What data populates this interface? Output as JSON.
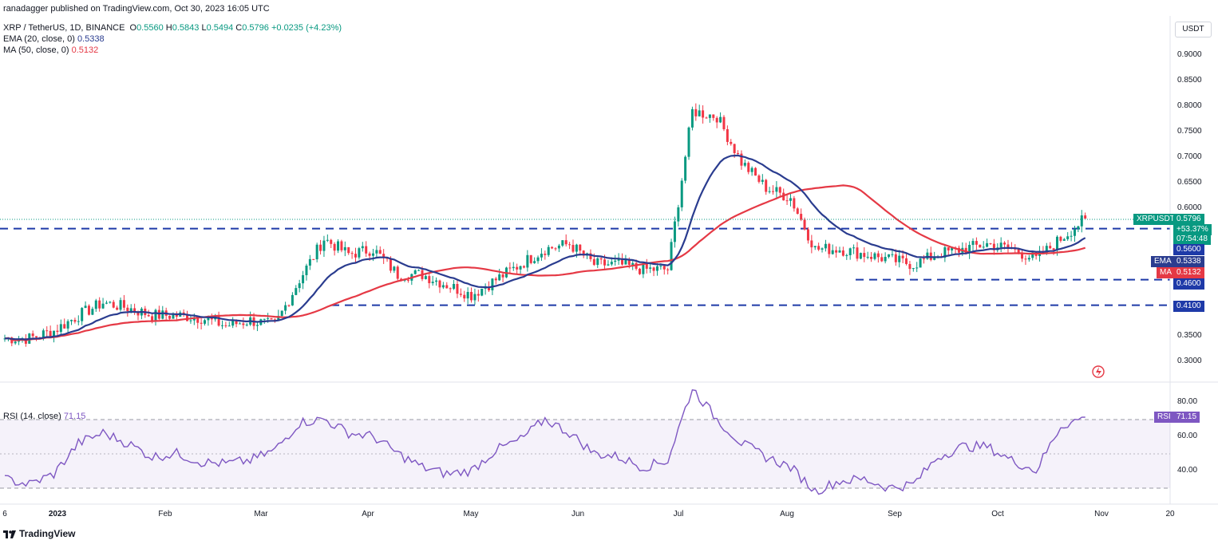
{
  "header": {
    "published": "ranadagger published on TradingView.com, Oct 30, 2023 16:05 UTC",
    "symbol": "XRP / TetherUS, 1D, BINANCE",
    "ohlc_o_label": "O",
    "ohlc_o": "0.5560",
    "ohlc_h_label": "H",
    "ohlc_h": "0.5843",
    "ohlc_l_label": "L",
    "ohlc_l": "0.5494",
    "ohlc_c_label": "C",
    "ohlc_c": "0.5796",
    "change": "+0.0235 (+4.23%)",
    "ema_label": "EMA (20, close, 0)",
    "ema_value": "0.5338",
    "ma_label": "MA (50, close, 0)",
    "ma_value": "0.5132",
    "rsi_label": "RSI (14, close)",
    "rsi_value": "71.15"
  },
  "price_axis": {
    "currency": "USDT",
    "ticks": [
      "0.9000",
      "0.8500",
      "0.8000",
      "0.7500",
      "0.7000",
      "0.6500",
      "0.6000",
      "0.3500",
      "0.3000"
    ],
    "tick_values": [
      0.9,
      0.85,
      0.8,
      0.75,
      0.7,
      0.65,
      0.6,
      0.35,
      0.3
    ]
  },
  "rsi_axis": {
    "ticks": [
      "80.00",
      "60.00",
      "40.00"
    ],
    "tick_values": [
      80,
      60,
      40
    ]
  },
  "price_tags": {
    "symbol_tag": "XRPUSDT",
    "last": "0.5796",
    "pct": "+53.37%",
    "countdown": "07:54:48",
    "level_560": "0.5600",
    "ema_tag": "EMA",
    "ema_val": "0.5338",
    "ma_tag": "MA",
    "ma_val": "0.5132",
    "level_460": "0.4600",
    "level_410": "0.4100",
    "rsi_tag": "RSI",
    "rsi_val": "71.15"
  },
  "x_axis": {
    "labels": [
      "6",
      "2023",
      "Feb",
      "Mar",
      "Apr",
      "May",
      "Jun",
      "Jul",
      "Aug",
      "Sep",
      "Oct",
      "Nov",
      "20"
    ]
  },
  "footer": {
    "brand": "TradingView"
  },
  "colors": {
    "up": "#089981",
    "down": "#f23645",
    "ema": "#2a3c8f",
    "ma": "#e53945",
    "rsi": "#7e57c2",
    "level": "#1e3aa8"
  },
  "chart_data": {
    "type": "candlestick",
    "horizontal_levels": [
      0.56,
      0.46,
      0.41
    ],
    "close_series": {
      "x": [
        "2022-12-26",
        "2023-01-02",
        "2023-01-09",
        "2023-01-16",
        "2023-01-23",
        "2023-01-30",
        "2023-02-06",
        "2023-02-13",
        "2023-02-20",
        "2023-02-27",
        "2023-03-06",
        "2023-03-13",
        "2023-03-20",
        "2023-03-27",
        "2023-04-03",
        "2023-04-10",
        "2023-04-17",
        "2023-04-24",
        "2023-05-01",
        "2023-05-08",
        "2023-05-15",
        "2023-05-22",
        "2023-05-29",
        "2023-06-05",
        "2023-06-12",
        "2023-06-19",
        "2023-06-26",
        "2023-07-03",
        "2023-07-10",
        "2023-07-17",
        "2023-07-24",
        "2023-07-31",
        "2023-08-07",
        "2023-08-14",
        "2023-08-21",
        "2023-08-28",
        "2023-09-04",
        "2023-09-11",
        "2023-09-18",
        "2023-09-25",
        "2023-10-02",
        "2023-10-09",
        "2023-10-16",
        "2023-10-23",
        "2023-10-30"
      ],
      "close": [
        0.345,
        0.345,
        0.36,
        0.39,
        0.415,
        0.405,
        0.39,
        0.39,
        0.385,
        0.37,
        0.38,
        0.37,
        0.46,
        0.54,
        0.51,
        0.52,
        0.47,
        0.47,
        0.45,
        0.43,
        0.46,
        0.49,
        0.52,
        0.53,
        0.49,
        0.49,
        0.48,
        0.48,
        0.79,
        0.78,
        0.69,
        0.64,
        0.62,
        0.52,
        0.52,
        0.51,
        0.5,
        0.49,
        0.51,
        0.52,
        0.53,
        0.52,
        0.5,
        0.54,
        0.5796
      ]
    },
    "rsi": [
      35,
      32,
      38,
      56,
      62,
      56,
      48,
      50,
      45,
      44,
      46,
      52,
      68,
      70,
      62,
      60,
      50,
      42,
      38,
      40,
      52,
      58,
      70,
      62,
      50,
      48,
      42,
      46,
      88,
      70,
      56,
      48,
      42,
      28,
      34,
      35,
      30,
      32,
      48,
      54,
      54,
      46,
      40,
      66,
      71.15
    ],
    "ema_last": 0.5338,
    "ma_last": 0.5132
  }
}
